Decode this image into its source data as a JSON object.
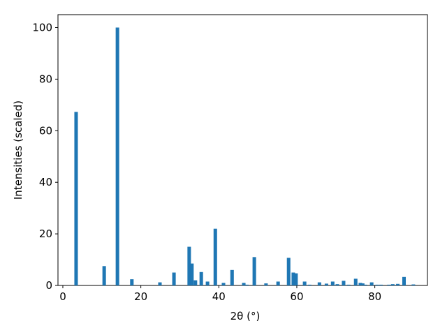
{
  "chart_data": {
    "type": "bar",
    "x_label": "2θ (°)",
    "y_label": "Intensities (scaled)",
    "x": [
      3.4,
      10.6,
      14.0,
      17.7,
      24.9,
      28.5,
      32.4,
      33.1,
      34.0,
      35.5,
      37.1,
      39.1,
      41.2,
      43.4,
      46.4,
      47.2,
      49.1,
      52.1,
      55.2,
      57.9,
      59.1,
      59.8,
      62.0,
      63.3,
      65.8,
      67.6,
      69.2,
      70.4,
      72.0,
      73.3,
      75.1,
      76.3,
      76.9,
      77.6,
      79.2,
      80.6,
      81.6,
      83.6,
      84.6,
      85.9,
      87.5,
      89.9
    ],
    "values": [
      67.3,
      7.5,
      100,
      2.4,
      1.2,
      5,
      15,
      8.5,
      2,
      5.2,
      1.5,
      22,
      1,
      6,
      1,
      0.3,
      11,
      0.8,
      1.5,
      10.7,
      5,
      4.7,
      1.5,
      0.3,
      1.2,
      0.7,
      1.5,
      0.5,
      1.8,
      0.3,
      2.6,
      1,
      0.8,
      0.3,
      1.2,
      0.3,
      0.3,
      0.3,
      0.5,
      0.6,
      3.3,
      0.4
    ],
    "color": "#1f77b4",
    "xlim": [
      -1.25,
      93.5
    ],
    "xticks": [
      0,
      20,
      40,
      60,
      80
    ],
    "ylim": [
      0,
      105
    ],
    "yticks": [
      0,
      20,
      40,
      60,
      80,
      100
    ]
  }
}
